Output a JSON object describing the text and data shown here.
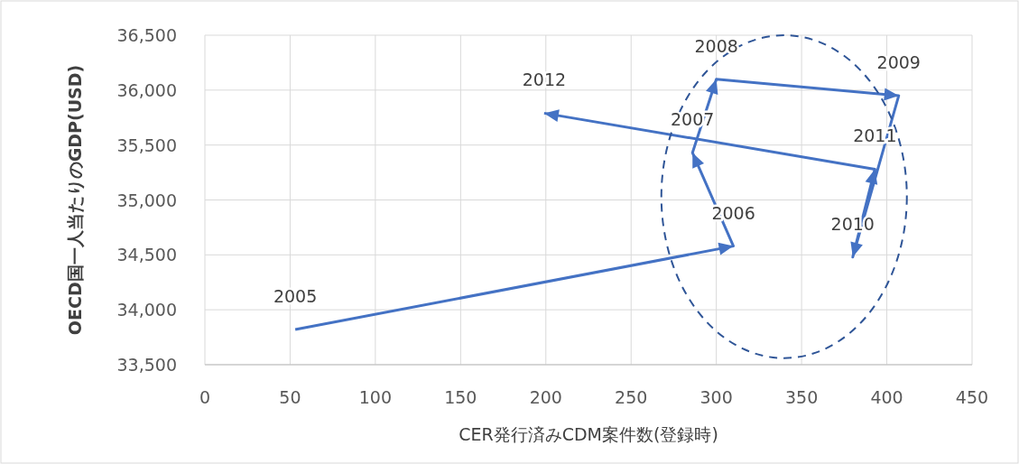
{
  "chart_data": {
    "type": "line",
    "xlabel": "CER発行済みCDM案件数(登録時)",
    "ylabel": "OECD国一人当たりのGDP(USD)",
    "x": [
      53,
      310,
      286,
      300,
      407,
      380,
      393,
      199
    ],
    "series": [
      {
        "color": "#4472c4",
        "values": [
          33820,
          34580,
          35430,
          36100,
          35950,
          34480,
          35280,
          35790
        ]
      }
    ],
    "xlim": [
      0,
      450
    ],
    "xticks": [
      0,
      50,
      100,
      150,
      200,
      250,
      300,
      350,
      400,
      450
    ],
    "ylim": [
      33500,
      36500
    ],
    "yticks": [
      {
        "value": 33500,
        "label": "33,500"
      },
      {
        "value": 34000,
        "label": "34,000"
      },
      {
        "value": 34500,
        "label": "34,500"
      },
      {
        "value": 35000,
        "label": "35,000"
      },
      {
        "value": 35500,
        "label": "35,500"
      },
      {
        "value": 36000,
        "label": "36,000"
      },
      {
        "value": 36500,
        "label": "36,500"
      }
    ],
    "grid": true,
    "marker": "none",
    "line_style": "solid",
    "annotations": [
      {
        "text": "2005",
        "x": 53,
        "y": 33820
      },
      {
        "text": "2006",
        "x": 310,
        "y": 34580
      },
      {
        "text": "2007",
        "x": 286,
        "y": 35430
      },
      {
        "text": "2008",
        "x": 300,
        "y": 36100
      },
      {
        "text": "2009",
        "x": 407,
        "y": 35950
      },
      {
        "text": "2010",
        "x": 380,
        "y": 34480
      },
      {
        "text": "2011",
        "x": 393,
        "y": 35280
      },
      {
        "text": "2012",
        "x": 199,
        "y": 35790
      }
    ]
  }
}
